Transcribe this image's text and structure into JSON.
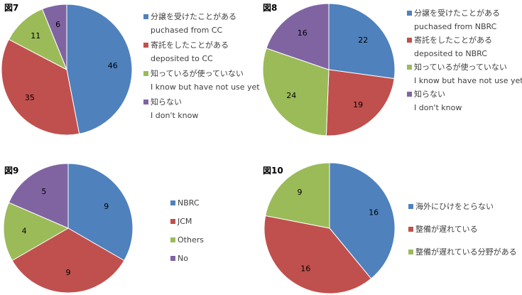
{
  "colors": {
    "blue": "#4f81bd",
    "red": "#c0504d",
    "green": "#9bbb59",
    "purple": "#8064a2"
  },
  "chart_data": [
    {
      "type": "pie",
      "title": "図7",
      "series": [
        {
          "name": "分譲を受けたことがある",
          "sub": "puchased from CC",
          "value": 46,
          "color": "#4f81bd"
        },
        {
          "name": "寄託をしたことがある",
          "sub": "deposited to CC",
          "value": 35,
          "color": "#c0504d"
        },
        {
          "name": "知っているが使っていない",
          "sub": "I know but have not use yet",
          "value": 11,
          "color": "#9bbb59"
        },
        {
          "name": "知らない",
          "sub": "I don't know",
          "value": 6,
          "color": "#8064a2"
        }
      ]
    },
    {
      "type": "pie",
      "title": "図8",
      "series": [
        {
          "name": "分譲を受けたことがある",
          "sub": "puchased from NBRC",
          "value": 22,
          "color": "#4f81bd"
        },
        {
          "name": "寄託をしたことがある",
          "sub": "deposited to NBRC",
          "value": 19,
          "color": "#c0504d"
        },
        {
          "name": "知っているが使っていない",
          "sub": "I know but have not use yet",
          "value": 24,
          "color": "#9bbb59"
        },
        {
          "name": "知らない",
          "sub": "I don't know",
          "value": 16,
          "color": "#8064a2"
        }
      ]
    },
    {
      "type": "pie",
      "title": "図9",
      "series": [
        {
          "name": "NBRC",
          "value": 9,
          "color": "#4f81bd"
        },
        {
          "name": "JCM",
          "value": 9,
          "color": "#c0504d"
        },
        {
          "name": "Others",
          "value": 4,
          "color": "#9bbb59"
        },
        {
          "name": "No",
          "value": 5,
          "color": "#8064a2"
        }
      ]
    },
    {
      "type": "pie",
      "title": "図10",
      "series": [
        {
          "name": "海外にひけをとらない",
          "value": 16,
          "color": "#4f81bd"
        },
        {
          "name": "整備が遅れている",
          "value": 16,
          "color": "#c0504d"
        },
        {
          "name": "整備が遅れている分野がある",
          "value": 9,
          "color": "#9bbb59"
        }
      ]
    }
  ]
}
